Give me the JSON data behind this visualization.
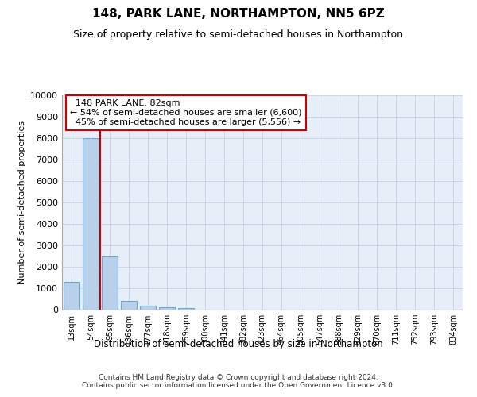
{
  "title": "148, PARK LANE, NORTHAMPTON, NN5 6PZ",
  "subtitle": "Size of property relative to semi-detached houses in Northampton",
  "xlabel_bottom": "Distribution of semi-detached houses by size in Northampton",
  "ylabel": "Number of semi-detached properties",
  "footer": "Contains HM Land Registry data © Crown copyright and database right 2024.\nContains public sector information licensed under the Open Government Licence v3.0.",
  "categories": [
    "13sqm",
    "54sqm",
    "95sqm",
    "136sqm",
    "177sqm",
    "218sqm",
    "259sqm",
    "300sqm",
    "341sqm",
    "382sqm",
    "423sqm",
    "464sqm",
    "505sqm",
    "547sqm",
    "588sqm",
    "629sqm",
    "670sqm",
    "711sqm",
    "752sqm",
    "793sqm",
    "834sqm"
  ],
  "values": [
    1300,
    8000,
    2500,
    400,
    175,
    100,
    75,
    0,
    0,
    0,
    0,
    0,
    0,
    0,
    0,
    0,
    0,
    0,
    0,
    0,
    0
  ],
  "bar_color": "#b8d0ea",
  "bar_edge_color": "#6aaad4",
  "ylim": [
    0,
    10000
  ],
  "yticks": [
    0,
    1000,
    2000,
    3000,
    4000,
    5000,
    6000,
    7000,
    8000,
    9000,
    10000
  ],
  "property_label": "148 PARK LANE: 82sqm",
  "pct_smaller": 54,
  "pct_larger": 45,
  "count_smaller": "6,600",
  "count_larger": "5,556",
  "vline_color": "#cc0000",
  "annotation_box_color": "#cc0000",
  "grid_color": "#c8d8ec",
  "bg_color": "#e8eef8",
  "title_fontsize": 11,
  "subtitle_fontsize": 9,
  "vline_bar_index": 2
}
